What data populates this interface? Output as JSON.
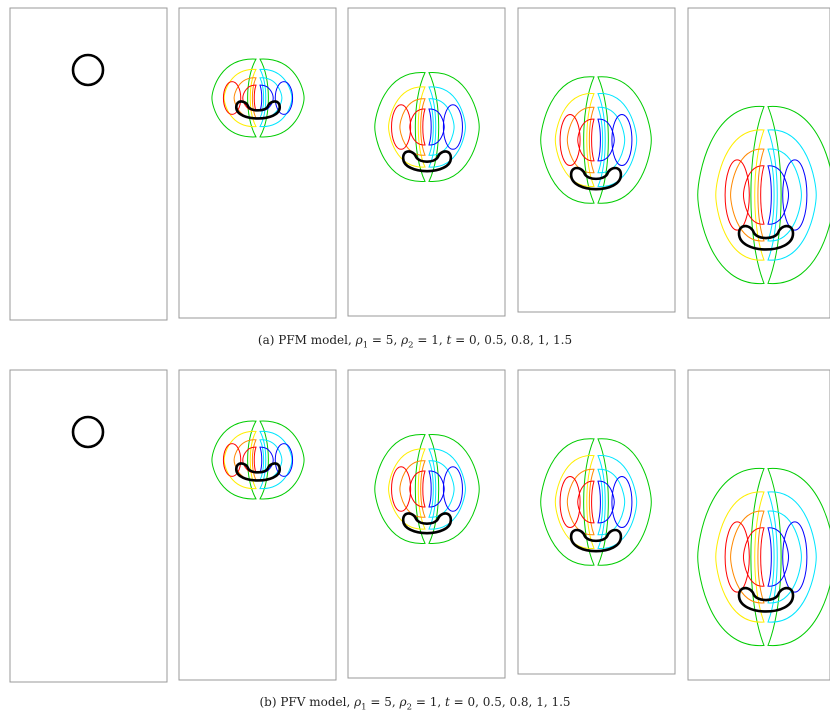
{
  "figure": {
    "subfigures": [
      {
        "label": "(a)",
        "model": "PFM model",
        "rho_1": "5",
        "rho_2": "1",
        "t_values": "0, 0.5, 0.8, 1, 1.5",
        "time_steps": [
          0,
          0.5,
          0.8,
          1,
          1.5
        ]
      },
      {
        "label": "(b)",
        "model": "PFV model",
        "rho_1": "5",
        "rho_2": "1",
        "t_values": "0, 0.5, 0.8, 1, 1.5",
        "time_steps": [
          0,
          0.5,
          0.8,
          1,
          1.5
        ]
      }
    ],
    "contour_colors": [
      "#ff0000",
      "#ff8800",
      "#ffee00",
      "#00cc00",
      "#00e5ff",
      "#0000ff"
    ],
    "interface_color": "#000000",
    "frame_color": "#999999"
  }
}
